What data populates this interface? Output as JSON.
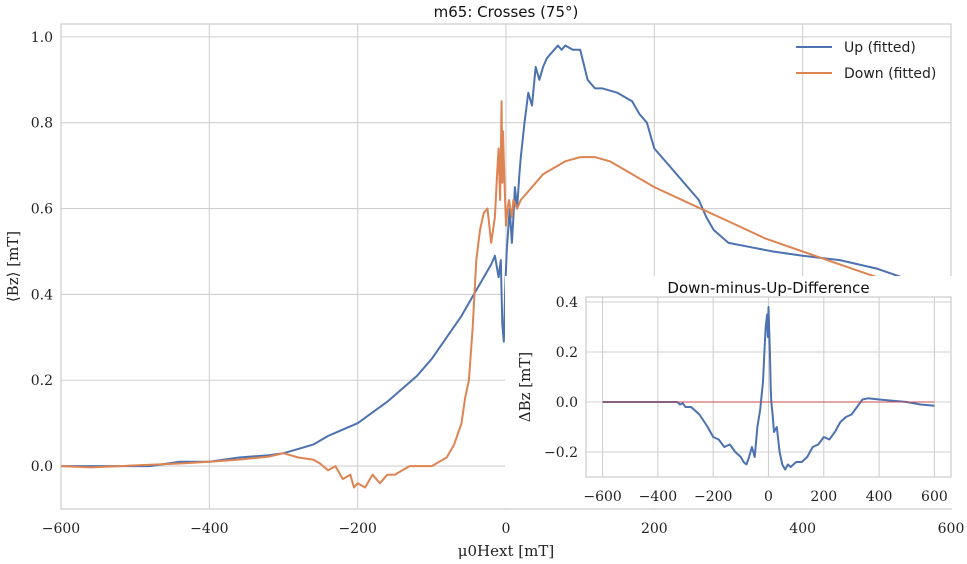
{
  "chart_data": [
    {
      "type": "line",
      "title": "m65: Crosses (75°)",
      "xlabel": "μ0Hext [mT]",
      "ylabel": "⟨Bz⟩ [mT]",
      "xlim": [
        -600,
        600
      ],
      "ylim": [
        -0.1,
        1.03
      ],
      "xticks": [
        -600,
        -400,
        -200,
        0,
        200,
        400,
        600
      ],
      "xtick_labels": [
        "−600",
        "−400",
        "−200",
        "0",
        "200",
        "400",
        "600"
      ],
      "yticks": [
        0.0,
        0.2,
        0.4,
        0.6,
        0.8,
        1.0
      ],
      "ytick_labels": [
        "0.0",
        "0.2",
        "0.4",
        "0.6",
        "0.8",
        "1.0"
      ],
      "grid": true,
      "legend": "top-right",
      "series": [
        {
          "name": "Up (fitted)",
          "color": "#4c72b0",
          "x": [
            -600,
            -560,
            -520,
            -480,
            -440,
            -400,
            -360,
            -320,
            -300,
            -280,
            -260,
            -240,
            -220,
            -200,
            -180,
            -160,
            -140,
            -120,
            -100,
            -80,
            -60,
            -50,
            -40,
            -30,
            -20,
            -15,
            -10,
            -7,
            -5,
            -3,
            -1,
            1,
            3,
            5,
            8,
            10,
            12,
            15,
            18,
            20,
            25,
            30,
            35,
            40,
            45,
            50,
            55,
            60,
            65,
            70,
            75,
            80,
            90,
            100,
            110,
            120,
            130,
            150,
            170,
            180,
            190,
            200,
            210,
            220,
            240,
            260,
            270,
            280,
            300,
            330,
            360,
            400,
            450,
            500,
            550,
            600
          ],
          "y": [
            0.0,
            0.0,
            0.0,
            0.0,
            0.01,
            0.01,
            0.02,
            0.025,
            0.03,
            0.04,
            0.05,
            0.07,
            0.085,
            0.1,
            0.125,
            0.15,
            0.18,
            0.21,
            0.25,
            0.3,
            0.35,
            0.38,
            0.41,
            0.44,
            0.47,
            0.49,
            0.44,
            0.48,
            0.33,
            0.29,
            0.42,
            0.5,
            0.55,
            0.6,
            0.52,
            0.58,
            0.65,
            0.6,
            0.68,
            0.72,
            0.8,
            0.87,
            0.84,
            0.93,
            0.9,
            0.93,
            0.95,
            0.96,
            0.97,
            0.98,
            0.97,
            0.98,
            0.97,
            0.97,
            0.9,
            0.88,
            0.88,
            0.87,
            0.85,
            0.82,
            0.8,
            0.74,
            0.72,
            0.7,
            0.66,
            0.62,
            0.58,
            0.55,
            0.52,
            0.51,
            0.5,
            0.49,
            0.48,
            0.46,
            0.43,
            0.39
          ]
        },
        {
          "name": "Down (fitted)",
          "color": "#dd8452",
          "x": [
            -600,
            -560,
            -520,
            -480,
            -440,
            -400,
            -360,
            -320,
            -300,
            -280,
            -260,
            -250,
            -240,
            -230,
            -220,
            -210,
            -205,
            -200,
            -190,
            -180,
            -170,
            -160,
            -150,
            -140,
            -130,
            -120,
            -100,
            -90,
            -80,
            -70,
            -60,
            -55,
            -50,
            -45,
            -40,
            -35,
            -30,
            -25,
            -20,
            -15,
            -12,
            -10,
            -8,
            -6,
            -5,
            -4,
            -2,
            0,
            2,
            4,
            6,
            8,
            10,
            15,
            20,
            30,
            40,
            50,
            60,
            70,
            80,
            100,
            120,
            140,
            160,
            180,
            200,
            250,
            300,
            350,
            400,
            450,
            500,
            550,
            600
          ],
          "y": [
            0.0,
            -0.003,
            0.0,
            0.003,
            0.006,
            0.01,
            0.015,
            0.022,
            0.03,
            0.02,
            0.015,
            0.005,
            -0.01,
            0.0,
            -0.03,
            -0.02,
            -0.05,
            -0.04,
            -0.05,
            -0.02,
            -0.04,
            -0.02,
            -0.02,
            -0.01,
            0.0,
            0.0,
            0.0,
            0.01,
            0.02,
            0.05,
            0.1,
            0.16,
            0.2,
            0.32,
            0.48,
            0.55,
            0.59,
            0.6,
            0.52,
            0.58,
            0.68,
            0.74,
            0.62,
            0.85,
            0.66,
            0.78,
            0.66,
            0.56,
            0.6,
            0.62,
            0.6,
            0.58,
            0.62,
            0.6,
            0.62,
            0.64,
            0.66,
            0.68,
            0.69,
            0.7,
            0.71,
            0.72,
            0.72,
            0.71,
            0.69,
            0.67,
            0.65,
            0.61,
            0.57,
            0.53,
            0.5,
            0.47,
            0.44,
            0.42,
            0.39
          ]
        }
      ]
    },
    {
      "type": "line",
      "title": "Down-minus-Up-Difference",
      "xlabel": "",
      "ylabel": "ΔBz [mT]",
      "xlim": [
        -660,
        660
      ],
      "ylim": [
        -0.3,
        0.42
      ],
      "xticks": [
        -600,
        -400,
        -200,
        0,
        200,
        400,
        600
      ],
      "xtick_labels": [
        "−600",
        "−400",
        "−200",
        "0",
        "200",
        "400",
        "600"
      ],
      "yticks": [
        -0.2,
        0.0,
        0.2,
        0.4
      ],
      "ytick_labels": [
        "−0.2",
        "0.0",
        "0.2",
        "0.4"
      ],
      "grid": true,
      "reference_line": {
        "y": 0.0,
        "color": "#c44e52"
      },
      "series": [
        {
          "color": "#4c72b0",
          "x": [
            -600,
            -500,
            -400,
            -330,
            -320,
            -310,
            -300,
            -280,
            -250,
            -220,
            -200,
            -180,
            -160,
            -140,
            -120,
            -100,
            -90,
            -80,
            -70,
            -60,
            -50,
            -40,
            -30,
            -20,
            -15,
            -10,
            -5,
            -2,
            0,
            2,
            5,
            8,
            10,
            15,
            20,
            30,
            40,
            50,
            60,
            70,
            80,
            100,
            120,
            140,
            160,
            180,
            200,
            220,
            240,
            260,
            280,
            300,
            320,
            340,
            360,
            400,
            450,
            500,
            550,
            600
          ],
          "y": [
            0.0,
            0.0,
            0.0,
            0.0,
            -0.01,
            -0.005,
            -0.02,
            -0.02,
            -0.05,
            -0.1,
            -0.14,
            -0.15,
            -0.18,
            -0.17,
            -0.2,
            -0.22,
            -0.24,
            -0.25,
            -0.22,
            -0.18,
            -0.22,
            -0.1,
            -0.03,
            0.08,
            0.2,
            0.3,
            0.35,
            0.26,
            0.38,
            0.3,
            0.2,
            0.06,
            0.0,
            -0.05,
            -0.12,
            -0.1,
            -0.2,
            -0.25,
            -0.27,
            -0.25,
            -0.26,
            -0.24,
            -0.24,
            -0.22,
            -0.18,
            -0.17,
            -0.14,
            -0.15,
            -0.12,
            -0.08,
            -0.06,
            -0.05,
            -0.02,
            0.01,
            0.015,
            0.01,
            0.005,
            0.0,
            -0.01,
            -0.015
          ]
        }
      ]
    }
  ]
}
